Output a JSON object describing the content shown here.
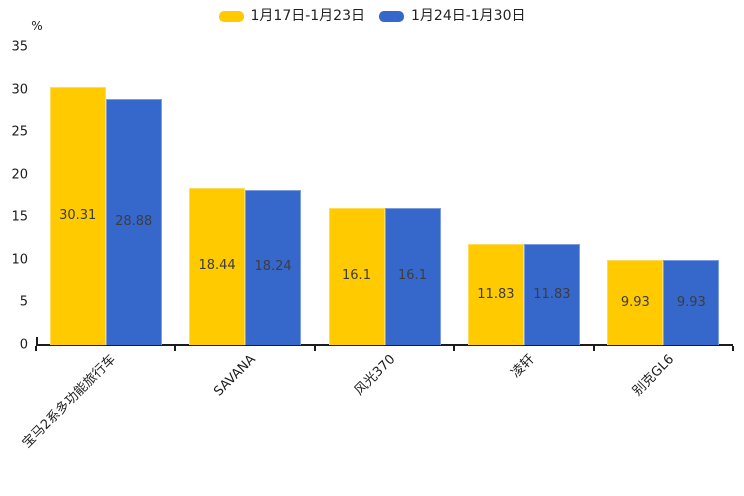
{
  "chart_data": {
    "type": "bar",
    "categories": [
      "宝马2系多功能旅行车",
      "SAVANA",
      "风光370",
      "凌轩",
      "别克GL6"
    ],
    "series": [
      {
        "name": "1月17日-1月23日",
        "color": "#FFCA00",
        "values": [
          30.31,
          18.44,
          16.1,
          11.83,
          9.93
        ]
      },
      {
        "name": "1月24日-1月30日",
        "color": "#3667CB",
        "values": [
          28.88,
          18.24,
          16.1,
          11.83,
          9.93
        ]
      }
    ],
    "title": "",
    "xlabel": "",
    "ylabel": "%",
    "ylim": [
      0,
      35
    ],
    "yticks": [
      0,
      5,
      10,
      15,
      20,
      25,
      30,
      35
    ],
    "grid": false,
    "legend_position": "top-center",
    "value_label_position": "inside-center"
  }
}
